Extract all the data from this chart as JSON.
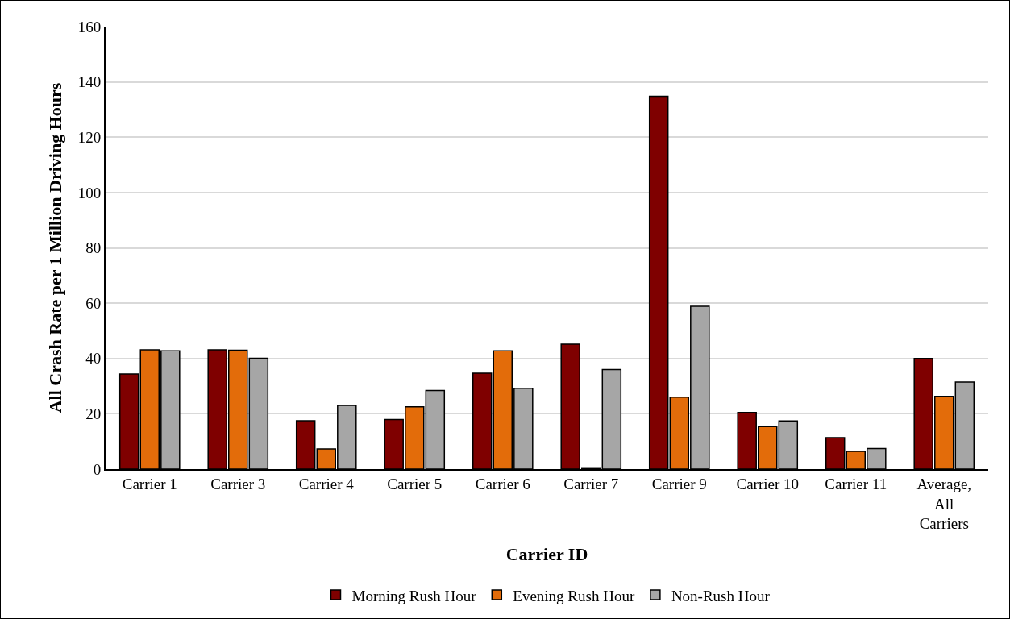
{
  "chart_data": {
    "type": "bar",
    "xlabel": "Carrier ID",
    "ylabel": "All Crash Rate per 1 Million Driving Hours",
    "categories": [
      "Carrier 1",
      "Carrier 3",
      "Carrier 4",
      "Carrier 5",
      "Carrier 6",
      "Carrier 7",
      "Carrier 9",
      "Carrier 10",
      "Carrier 11",
      "Average, All Carriers"
    ],
    "series": [
      {
        "name": "Morning Rush Hour",
        "color": "#7f0000",
        "values": [
          34.4,
          43.1,
          17.5,
          17.9,
          34.7,
          45.2,
          134.8,
          20.5,
          11.4,
          40.0
        ]
      },
      {
        "name": "Evening Rush Hour",
        "color": "#e36c0a",
        "values": [
          43.1,
          43.0,
          7.3,
          22.5,
          42.8,
          0.2,
          26.0,
          15.4,
          6.4,
          26.3
        ]
      },
      {
        "name": "Non-Rush Hour",
        "color": "#a6a6a6",
        "values": [
          42.8,
          40.1,
          23.0,
          28.4,
          29.2,
          36.0,
          58.9,
          17.4,
          7.4,
          31.5
        ]
      }
    ],
    "ylim": [
      0,
      160
    ],
    "yticks": [
      0,
      20,
      40,
      60,
      80,
      100,
      120,
      140,
      160
    ],
    "grid": "y",
    "legend": "bottom"
  }
}
